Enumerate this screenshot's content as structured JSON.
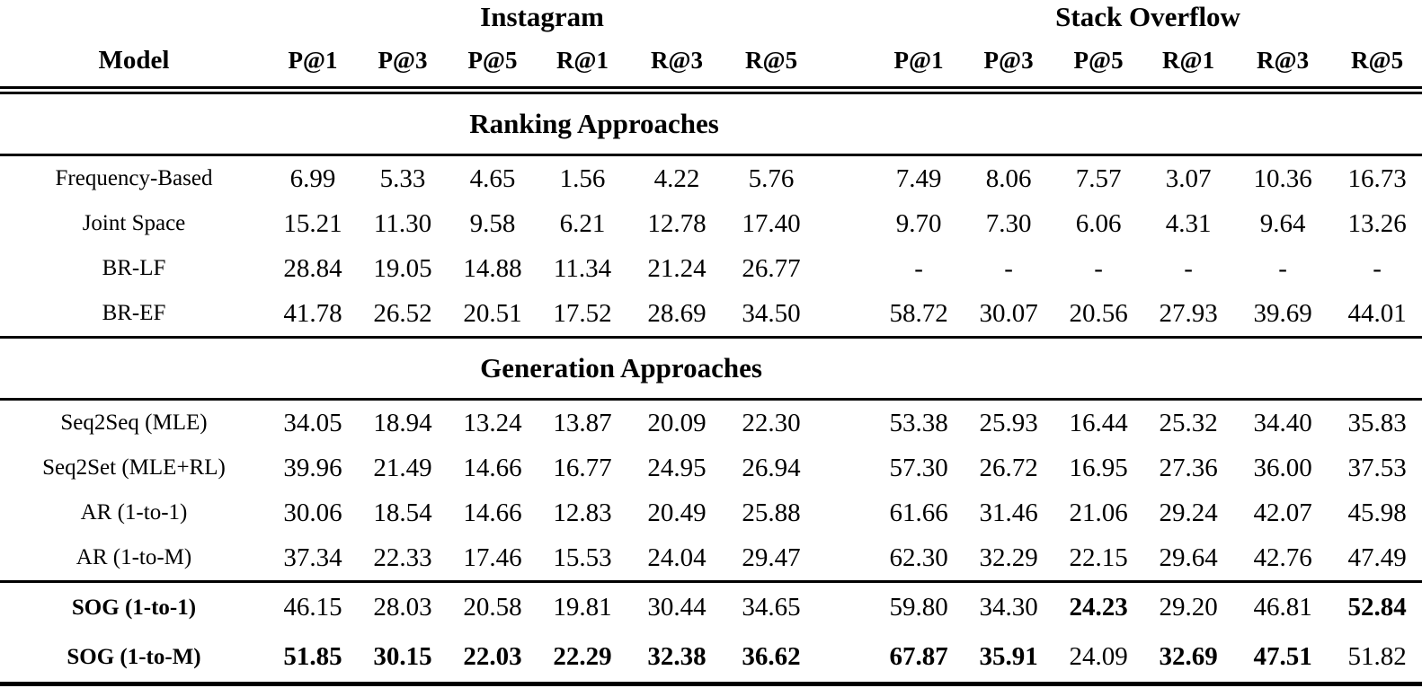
{
  "table": {
    "col_groups": [
      {
        "label": "Instagram"
      },
      {
        "label": "Stack Overflow"
      }
    ],
    "model_header": "Model",
    "metric_headers": [
      "P@1",
      "P@3",
      "P@5",
      "R@1",
      "R@3",
      "R@5"
    ],
    "sections": [
      {
        "title": "Ranking Approaches",
        "rows": [
          {
            "model": "Frequency-Based",
            "ig": [
              "6.99",
              "5.33",
              "4.65",
              "1.56",
              "4.22",
              "5.76"
            ],
            "so": [
              "7.49",
              "8.06",
              "7.57",
              "3.07",
              "10.36",
              "16.73"
            ]
          },
          {
            "model": "Joint Space",
            "ig": [
              "15.21",
              "11.30",
              "9.58",
              "6.21",
              "12.78",
              "17.40"
            ],
            "so": [
              "9.70",
              "7.30",
              "6.06",
              "4.31",
              "9.64",
              "13.26"
            ]
          },
          {
            "model": "BR-LF",
            "ig": [
              "28.84",
              "19.05",
              "14.88",
              "11.34",
              "21.24",
              "26.77"
            ],
            "so": [
              "-",
              "-",
              "-",
              "-",
              "-",
              "-"
            ]
          },
          {
            "model": "BR-EF",
            "ig": [
              "41.78",
              "26.52",
              "20.51",
              "17.52",
              "28.69",
              "34.50"
            ],
            "so": [
              "58.72",
              "30.07",
              "20.56",
              "27.93",
              "39.69",
              "44.01"
            ]
          }
        ]
      },
      {
        "title": "Generation Approaches",
        "rows": [
          {
            "model": "Seq2Seq (MLE)",
            "ig": [
              "34.05",
              "18.94",
              "13.24",
              "13.87",
              "20.09",
              "22.30"
            ],
            "so": [
              "53.38",
              "25.93",
              "16.44",
              "25.32",
              "34.40",
              "35.83"
            ]
          },
          {
            "model": "Seq2Set (MLE+RL)",
            "ig": [
              "39.96",
              "21.49",
              "14.66",
              "16.77",
              "24.95",
              "26.94"
            ],
            "so": [
              "57.30",
              "26.72",
              "16.95",
              "27.36",
              "36.00",
              "37.53"
            ]
          },
          {
            "model": "AR (1-to-1)",
            "ig": [
              "30.06",
              "18.54",
              "14.66",
              "12.83",
              "20.49",
              "25.88"
            ],
            "so": [
              "61.66",
              "31.46",
              "21.06",
              "29.24",
              "42.07",
              "45.98"
            ]
          },
          {
            "model": "AR (1-to-M)",
            "ig": [
              "37.34",
              "22.33",
              "17.46",
              "15.53",
              "24.04",
              "29.47"
            ],
            "so": [
              "62.30",
              "32.29",
              "22.15",
              "29.64",
              "42.76",
              "47.49"
            ]
          }
        ]
      },
      {
        "title": "",
        "rows": [
          {
            "model": "SOG (1-to-1)",
            "model_bold": true,
            "ig": [
              "46.15",
              "28.03",
              "20.58",
              "19.81",
              "30.44",
              "34.65"
            ],
            "so": [
              "59.80",
              "34.30",
              "24.23",
              "29.20",
              "46.81",
              "52.84"
            ],
            "so_bold": [
              false,
              false,
              true,
              false,
              false,
              true
            ]
          },
          {
            "model": "SOG (1-to-M)",
            "model_bold": true,
            "ig": [
              "51.85",
              "30.15",
              "22.03",
              "22.29",
              "32.38",
              "36.62"
            ],
            "ig_bold": [
              true,
              true,
              true,
              true,
              true,
              true
            ],
            "so": [
              "67.87",
              "35.91",
              "24.09",
              "32.69",
              "47.51",
              "51.82"
            ],
            "so_bold": [
              true,
              true,
              false,
              true,
              true,
              false
            ]
          }
        ]
      }
    ]
  }
}
